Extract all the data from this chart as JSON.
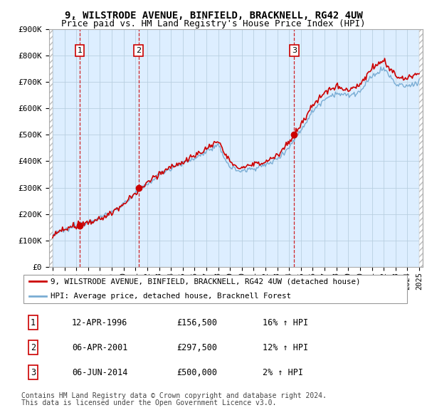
{
  "title": "9, WILSTRODE AVENUE, BINFIELD, BRACKNELL, RG42 4UW",
  "subtitle": "Price paid vs. HM Land Registry's House Price Index (HPI)",
  "legend_line1": "9, WILSTRODE AVENUE, BINFIELD, BRACKNELL, RG42 4UW (detached house)",
  "legend_line2": "HPI: Average price, detached house, Bracknell Forest",
  "footer1": "Contains HM Land Registry data © Crown copyright and database right 2024.",
  "footer2": "This data is licensed under the Open Government Licence v3.0.",
  "sales": [
    {
      "num": 1,
      "date": "12-APR-1996",
      "price": 156500,
      "pct": "16%",
      "year": 1996.28
    },
    {
      "num": 2,
      "date": "06-APR-2001",
      "price": 297500,
      "pct": "12%",
      "year": 2001.27
    },
    {
      "num": 3,
      "date": "06-JUN-2014",
      "price": 500000,
      "pct": "2%",
      "year": 2014.43
    }
  ],
  "ylim": [
    0,
    900000
  ],
  "xlim": [
    1993.7,
    2025.3
  ],
  "yticks": [
    0,
    100000,
    200000,
    300000,
    400000,
    500000,
    600000,
    700000,
    800000,
    900000
  ],
  "ytick_labels": [
    "£0",
    "£100K",
    "£200K",
    "£300K",
    "£400K",
    "£500K",
    "£600K",
    "£700K",
    "£800K",
    "£900K"
  ],
  "red_color": "#cc0000",
  "blue_color": "#7aadd4",
  "hatch_color": "#bbbbbb",
  "grid_color": "#b8cfe0",
  "plot_bg": "#ddeeff",
  "title_fontsize": 10,
  "subtitle_fontsize": 9
}
